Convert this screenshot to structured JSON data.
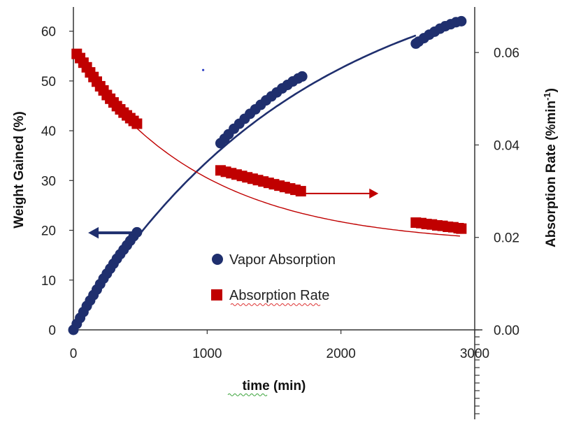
{
  "chart_data": {
    "type": "scatter",
    "title": "",
    "xlabel": "time (min)",
    "ylabel_left": "Weight Gained (%)",
    "ylabel_right_prefix": "Absorption Rate (%min",
    "ylabel_right_superscript": "-1",
    "ylabel_right_suffix": ")",
    "xlim": [
      0,
      3000
    ],
    "ylim_left": [
      0,
      65
    ],
    "ylim_right": [
      0,
      0.07
    ],
    "x_ticks": [
      0,
      1000,
      2000,
      3000
    ],
    "x_tick_labels": [
      "0",
      "1000",
      "2000",
      "3000"
    ],
    "y_left_ticks": [
      0,
      10,
      20,
      30,
      40,
      50,
      60
    ],
    "y_left_tick_labels": [
      "0",
      "10",
      "20",
      "30",
      "40",
      "50",
      "60"
    ],
    "y_right_ticks": [
      0,
      0.02,
      0.04,
      0.06
    ],
    "y_right_tick_labels": [
      "0.00",
      "0.02",
      "0.04",
      "0.06"
    ],
    "grid": false,
    "legend_position": "center-right",
    "series": [
      {
        "name": "Vapor Absorption",
        "axis": "left",
        "marker": "circle",
        "color": "#1f2f6e",
        "x": [
          0,
          25,
          50,
          75,
          100,
          125,
          150,
          175,
          200,
          225,
          250,
          275,
          300,
          325,
          350,
          375,
          400,
          425,
          450,
          475,
          1100,
          1130,
          1160,
          1200,
          1240,
          1280,
          1320,
          1360,
          1400,
          1440,
          1480,
          1520,
          1560,
          1600,
          1640,
          1680,
          1710,
          2560,
          2580,
          2620,
          2660,
          2700,
          2740,
          2780,
          2820,
          2860,
          2900
        ],
        "y": [
          0.0,
          1.2,
          2.4,
          3.6,
          4.8,
          5.9,
          7.0,
          8.1,
          9.2,
          10.3,
          11.3,
          12.3,
          13.3,
          14.3,
          15.2,
          16.1,
          17.0,
          17.9,
          18.8,
          19.6,
          37.5,
          38.4,
          39.3,
          40.4,
          41.4,
          42.4,
          43.4,
          44.3,
          45.2,
          46.1,
          46.9,
          47.7,
          48.5,
          49.2,
          49.9,
          50.5,
          50.9,
          57.5,
          57.9,
          58.6,
          59.3,
          59.9,
          60.5,
          61.0,
          61.4,
          61.8,
          62.0
        ]
      },
      {
        "name": "Absorption Rate",
        "axis": "right",
        "marker": "square",
        "color": "#c00000",
        "x": [
          25,
          50,
          75,
          100,
          125,
          150,
          175,
          200,
          225,
          250,
          275,
          300,
          325,
          350,
          375,
          400,
          425,
          450,
          475,
          1100,
          1140,
          1180,
          1220,
          1260,
          1300,
          1340,
          1380,
          1420,
          1460,
          1500,
          1540,
          1580,
          1620,
          1660,
          1700,
          2560,
          2600,
          2640,
          2680,
          2720,
          2760,
          2800,
          2840,
          2880,
          2900
        ],
        "y": [
          0.0597,
          0.0588,
          0.0578,
          0.0568,
          0.0557,
          0.0547,
          0.0537,
          0.0527,
          0.0518,
          0.0508,
          0.05,
          0.0492,
          0.0484,
          0.0477,
          0.047,
          0.0464,
          0.0458,
          0.0452,
          0.0446,
          0.0345,
          0.0342,
          0.0339,
          0.0336,
          0.0333,
          0.033,
          0.0327,
          0.0324,
          0.0321,
          0.0318,
          0.0315,
          0.0312,
          0.0309,
          0.0306,
          0.0303,
          0.03,
          0.0232,
          0.0231,
          0.0229,
          0.0228,
          0.0226,
          0.0225,
          0.0223,
          0.0222,
          0.022,
          0.0219
        ]
      }
    ],
    "fit_curves": [
      {
        "name": "Vapor Absorption fit",
        "axis": "left",
        "color": "#1f2f6e",
        "model": "y = 76 * (1 - exp(-x / 1700))"
      },
      {
        "name": "Absorption Rate fit",
        "axis": "right",
        "color": "#c00000",
        "model": "y = 0.0183 + 0.0417 * exp(-x / 950)"
      }
    ],
    "annotations": [
      {
        "type": "arrow",
        "direction": "left",
        "color": "#1f2f6e",
        "axis": "left",
        "from": [
          460,
          19.5
        ],
        "to": [
          110,
          19.5
        ]
      },
      {
        "type": "arrow",
        "direction": "right",
        "color": "#c00000",
        "axis": "right",
        "from": [
          1720,
          0.0295
        ],
        "to": [
          2280,
          0.0295
        ]
      },
      {
        "type": "point",
        "color": "#2a3cc4",
        "axis": "left",
        "at": [
          970,
          52.2
        ]
      }
    ]
  }
}
